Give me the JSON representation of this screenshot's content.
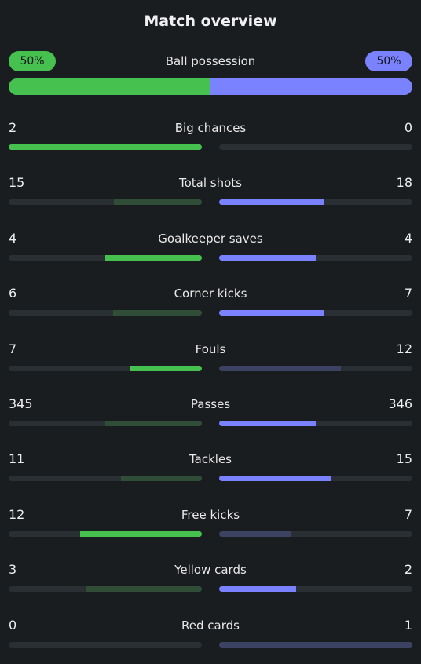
{
  "title": "Match overview",
  "colors": {
    "home_strong": "#46c04f",
    "home_weak": "#2f4d37",
    "away_strong": "#7b82ff",
    "away_weak": "#3b4262",
    "track": "#2a2f34"
  },
  "possession": {
    "label": "Ball possession",
    "home": "50%",
    "away": "50%",
    "home_fraction": 0.5
  },
  "stats": [
    {
      "label": "Big chances",
      "home": "2",
      "away": "0",
      "home_fraction": 1.0,
      "away_fraction": 0.0,
      "home_strong": true,
      "away_strong": false
    },
    {
      "label": "Total shots",
      "home": "15",
      "away": "18",
      "home_fraction": 0.455,
      "away_fraction": 0.545,
      "home_strong": false,
      "away_strong": true
    },
    {
      "label": "Goalkeeper saves",
      "home": "4",
      "away": "4",
      "home_fraction": 0.5,
      "away_fraction": 0.5,
      "home_strong": true,
      "away_strong": true
    },
    {
      "label": "Corner kicks",
      "home": "6",
      "away": "7",
      "home_fraction": 0.46,
      "away_fraction": 0.54,
      "home_strong": false,
      "away_strong": true
    },
    {
      "label": "Fouls",
      "home": "7",
      "away": "12",
      "home_fraction": 0.37,
      "away_fraction": 0.63,
      "home_strong": true,
      "away_strong": false
    },
    {
      "label": "Passes",
      "home": "345",
      "away": "346",
      "home_fraction": 0.5,
      "away_fraction": 0.5,
      "home_strong": false,
      "away_strong": true
    },
    {
      "label": "Tackles",
      "home": "11",
      "away": "15",
      "home_fraction": 0.42,
      "away_fraction": 0.58,
      "home_strong": false,
      "away_strong": true
    },
    {
      "label": "Free kicks",
      "home": "12",
      "away": "7",
      "home_fraction": 0.63,
      "away_fraction": 0.37,
      "home_strong": true,
      "away_strong": false
    },
    {
      "label": "Yellow cards",
      "home": "3",
      "away": "2",
      "home_fraction": 0.6,
      "away_fraction": 0.4,
      "home_strong": false,
      "away_strong": true
    },
    {
      "label": "Red cards",
      "home": "0",
      "away": "1",
      "home_fraction": 0.0,
      "away_fraction": 1.0,
      "home_strong": false,
      "away_strong": false
    }
  ]
}
